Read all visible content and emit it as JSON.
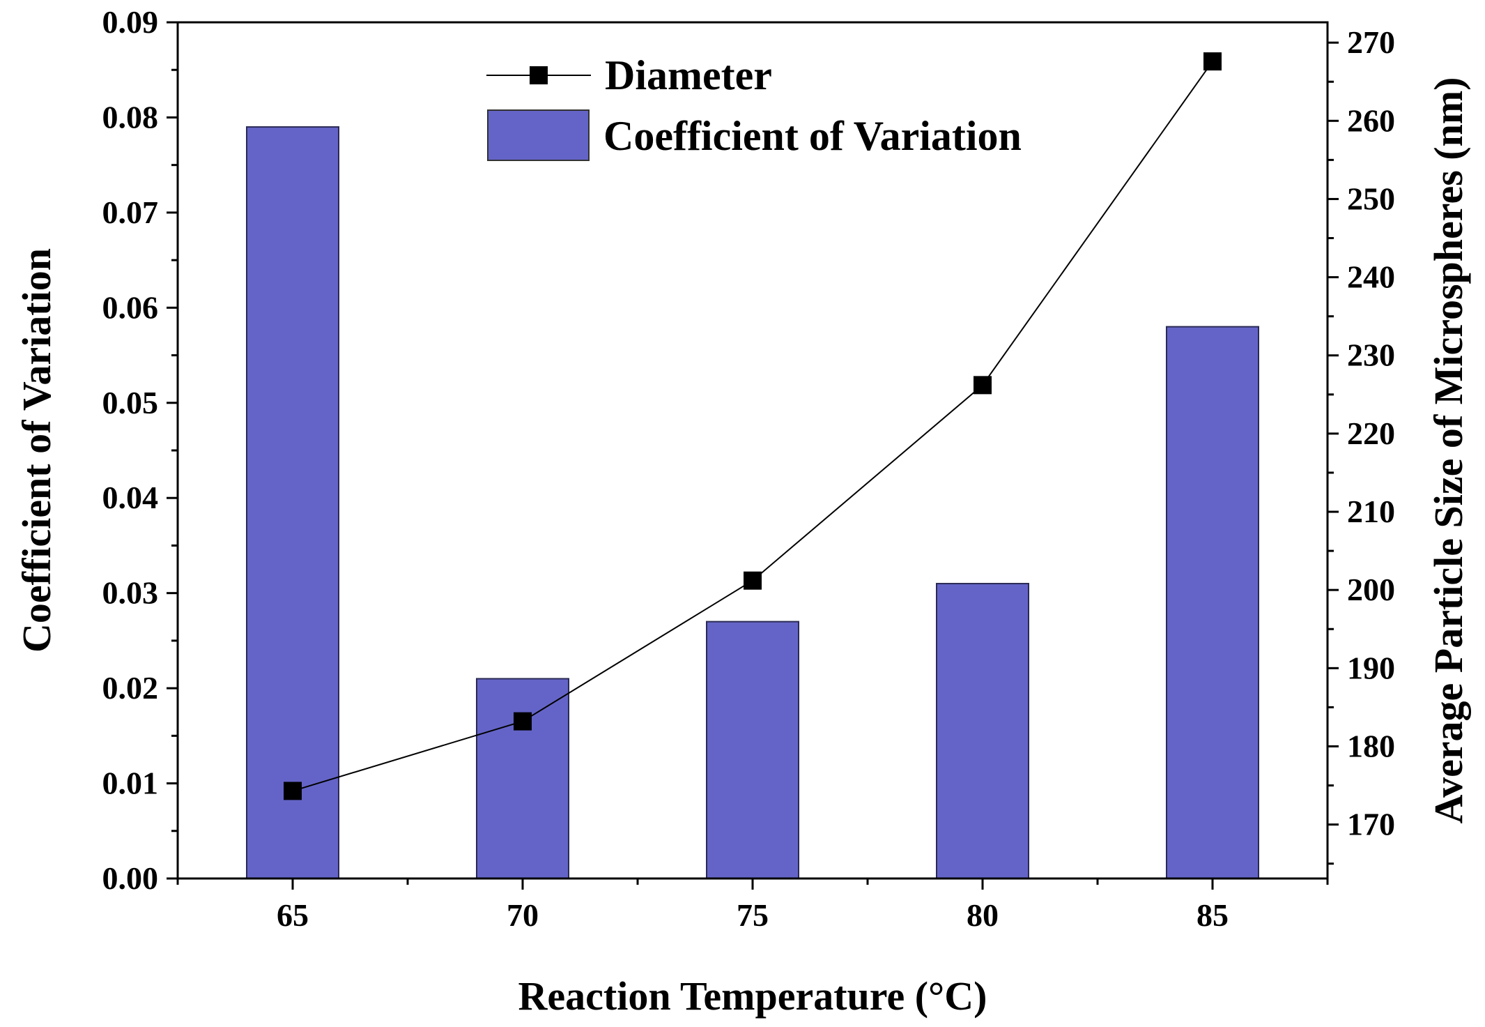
{
  "chart_data": {
    "type": "bar+line",
    "title": "",
    "xlabel": "Reaction Temperature (°C)",
    "ylabel_left": "Coefficient of Variation",
    "ylabel_right": "Average Particle Size of Microspheres (nm)",
    "categories": [
      "65",
      "70",
      "75",
      "80",
      "85"
    ],
    "x": [
      65,
      70,
      75,
      80,
      85
    ],
    "xlim": [
      62.5,
      87.5
    ],
    "x_minor_ticks": [
      62.5,
      67.5,
      72.5,
      77.5,
      82.5,
      87.5
    ],
    "ylim_left": [
      0,
      0.09
    ],
    "ylim_right": [
      163.1,
      272.6
    ],
    "left_ticks": [
      "0.00",
      "0.01",
      "0.02",
      "0.03",
      "0.04",
      "0.05",
      "0.06",
      "0.07",
      "0.08",
      "0.09"
    ],
    "right_ticks": [
      "170",
      "180",
      "190",
      "200",
      "210",
      "220",
      "230",
      "240",
      "250",
      "260",
      "270"
    ],
    "series": [
      {
        "name": "Coefficient of Variation",
        "type": "bar",
        "axis": "left",
        "color": "#6464c8",
        "values": [
          0.079,
          0.021,
          0.027,
          0.031,
          0.058
        ]
      },
      {
        "name": "Diameter",
        "type": "line",
        "axis": "right",
        "marker": "square",
        "color": "#000000",
        "values": [
          174.3,
          183.2,
          201.2,
          226.2,
          267.6
        ]
      }
    ],
    "legend": {
      "position": "top-center",
      "entries": [
        "Diameter",
        "Coefficient of Variation"
      ]
    }
  }
}
